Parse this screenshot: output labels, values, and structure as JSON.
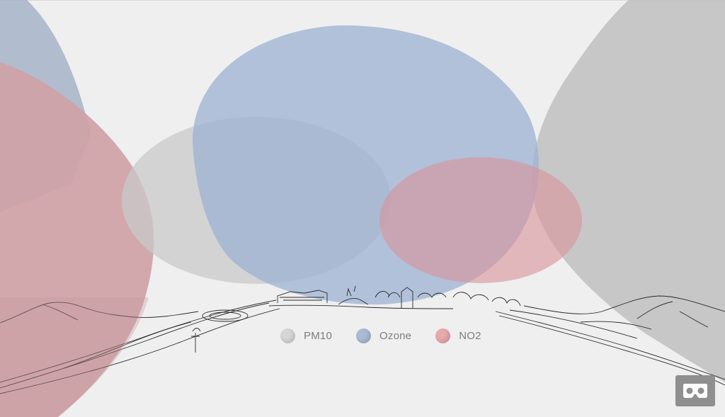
{
  "legend": {
    "items": [
      {
        "label": "PM10",
        "color": "#d6d6d6"
      },
      {
        "label": "Ozone",
        "color": "#a9bbd6"
      },
      {
        "label": "NO2",
        "color": "#e8a9ad"
      }
    ]
  },
  "colors": {
    "background": "#efefef",
    "pm10": "#b8b8b8",
    "ozone": "#9fb4d4",
    "no2": "#d9959c",
    "line_art": "#2a2a2a",
    "vr_button": "#8f8f8f"
  },
  "icons": {
    "vr_button": "vr-headset-icon"
  }
}
